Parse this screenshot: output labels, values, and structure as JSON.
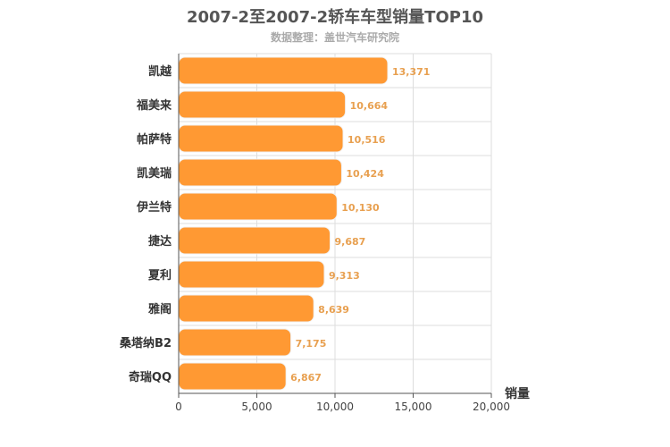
{
  "chart_data": {
    "type": "bar",
    "orientation": "horizontal",
    "title": "2007-2至2007-2轿车车型销量TOP10",
    "subtitle": "数据整理：盖世汽车研究院",
    "xlabel": "销量",
    "categories": [
      "凯越",
      "福美来",
      "帕萨特",
      "凯美瑞",
      "伊兰特",
      "捷达",
      "夏利",
      "雅阁",
      "桑塔纳B2",
      "奇瑞QQ"
    ],
    "values": [
      13371,
      10664,
      10516,
      10424,
      10130,
      9687,
      9313,
      8639,
      7175,
      6867
    ],
    "value_labels": [
      "13,371",
      "10,664",
      "10,516",
      "10,424",
      "10,130",
      "9,687",
      "9,313",
      "8,639",
      "7,175",
      "6,867"
    ],
    "xlim": [
      0,
      20000
    ],
    "x_ticks": [
      0,
      5000,
      10000,
      15000,
      20000
    ],
    "x_tick_labels": [
      "0",
      "5,000",
      "10,000",
      "15,000",
      "20,000"
    ],
    "grid": true,
    "bar_color": "#ff9933"
  }
}
